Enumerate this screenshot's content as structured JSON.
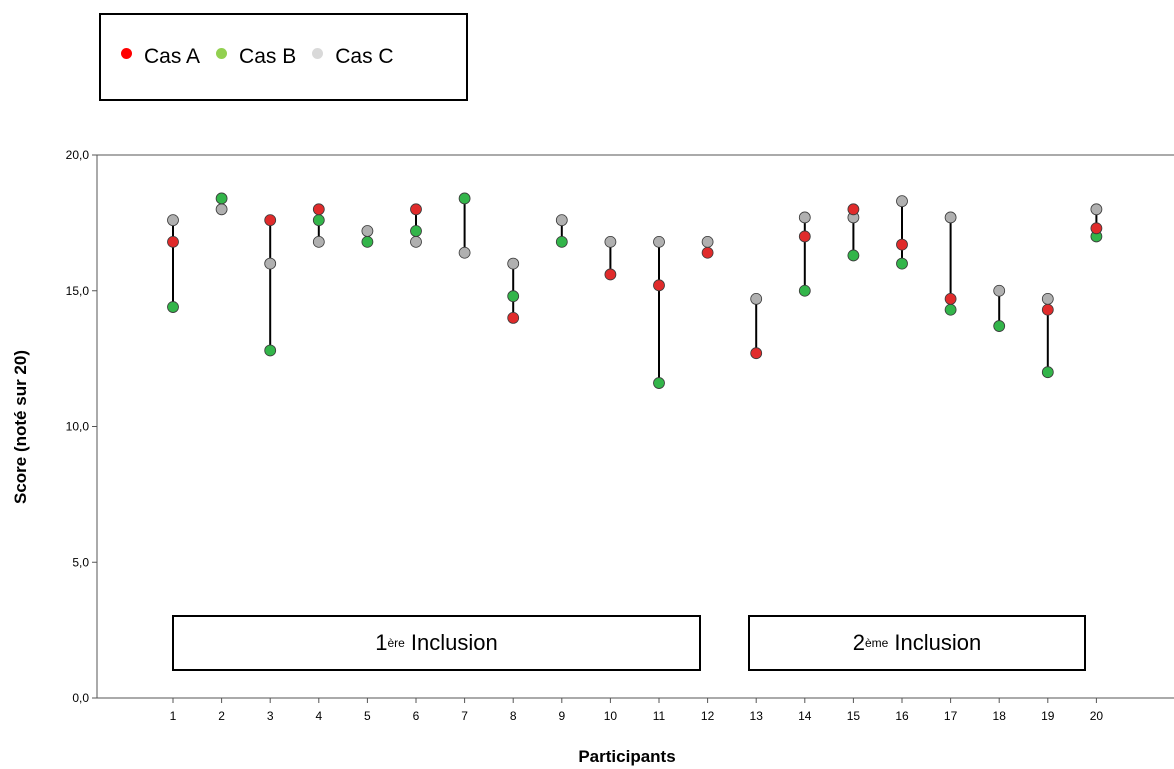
{
  "chart_data": {
    "type": "scatter",
    "xlabel": "Participants",
    "ylabel": "Score (noté sur 20)",
    "ylim": [
      0,
      20
    ],
    "yticks": [
      "0,0",
      "5,0",
      "10,0",
      "15,0",
      "20,0"
    ],
    "ytick_values": [
      0,
      5,
      10,
      15,
      20
    ],
    "x": [
      1,
      2,
      3,
      4,
      5,
      6,
      7,
      8,
      9,
      10,
      11,
      12,
      13,
      14,
      15,
      16,
      17,
      18,
      19,
      20
    ],
    "legend_position": "top-left",
    "series": [
      {
        "name": "Cas A",
        "color": "#e02b2b",
        "values": [
          16.8,
          null,
          17.6,
          18.0,
          null,
          18.0,
          null,
          14.0,
          null,
          15.6,
          15.2,
          16.4,
          12.7,
          17.0,
          18.0,
          16.7,
          14.7,
          null,
          14.3,
          17.3
        ]
      },
      {
        "name": "Cas B",
        "color": "#33b54a",
        "values": [
          14.4,
          18.4,
          12.8,
          17.6,
          16.8,
          17.2,
          18.4,
          14.8,
          16.8,
          null,
          11.6,
          null,
          null,
          15.0,
          16.3,
          16.0,
          14.3,
          13.7,
          12.0,
          17.0
        ]
      },
      {
        "name": "Cas C",
        "color": "#b0b0b0",
        "values": [
          17.6,
          18.0,
          16.0,
          16.8,
          17.2,
          16.8,
          16.4,
          16.0,
          17.6,
          16.8,
          16.8,
          16.8,
          14.7,
          17.7,
          17.7,
          18.3,
          17.7,
          15.0,
          14.7,
          18.0
        ]
      }
    ],
    "annotations": [
      {
        "prefix": "1",
        "sup": "ère",
        "text": " Inclusion",
        "x_from": 1,
        "x_to": 12
      },
      {
        "prefix": "2",
        "sup": "ème",
        "text": " Inclusion",
        "x_from": 13,
        "x_to": 20
      }
    ]
  },
  "legend": {
    "items": [
      {
        "label": "Cas A",
        "color": "#ff0000"
      },
      {
        "label": "Cas B",
        "color": "#92d050"
      },
      {
        "label": "Cas C",
        "color": "#d9d9d9"
      }
    ]
  }
}
